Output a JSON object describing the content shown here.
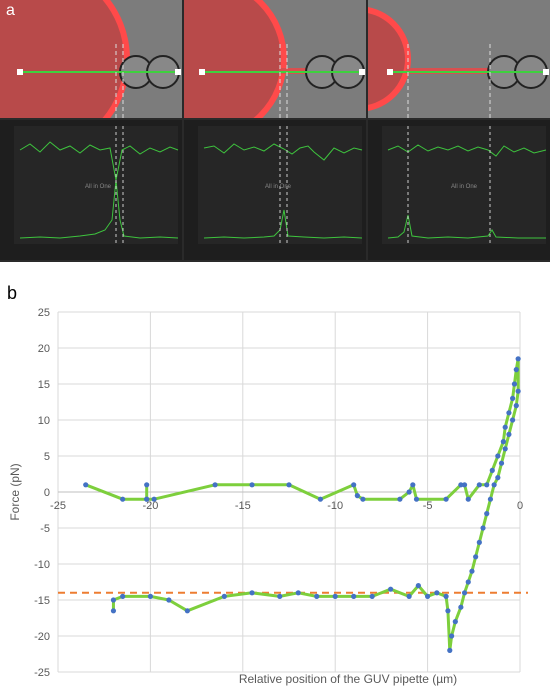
{
  "panel_labels": {
    "a": "a",
    "b": "b"
  },
  "micro_panels": [
    {
      "graph_label": "All in One"
    },
    {
      "graph_label": "All in One"
    },
    {
      "graph_label": "All in One"
    }
  ],
  "colors": {
    "series_line": "#7dcf3c",
    "series_marker": "#4472c4",
    "reference_line": "#ed7d31",
    "grid": "#d9d9d9",
    "axis_text": "#595959"
  },
  "chart_data": {
    "type": "scatter",
    "title": "",
    "xlabel": "Relative position of the GUV pipette (µm)",
    "ylabel": "Force (pN)",
    "xlim": [
      -25,
      0
    ],
    "ylim": [
      -25,
      25
    ],
    "x_ticks": [
      -25,
      -20,
      -15,
      -10,
      -5,
      0
    ],
    "y_ticks": [
      -25,
      -20,
      -15,
      -10,
      -5,
      0,
      5,
      10,
      15,
      20,
      25
    ],
    "grid": true,
    "legend": "none",
    "reference_line": {
      "y": -14,
      "style": "dashed"
    },
    "series": [
      {
        "points": [
          [
            -23.5,
            1.0
          ],
          [
            -21.5,
            -1.0
          ],
          [
            -20.2,
            -1.0
          ],
          [
            -20.2,
            1.0
          ],
          [
            -20.2,
            -1.0
          ],
          [
            -19.8,
            -1.0
          ],
          [
            -16.5,
            1.0
          ],
          [
            -14.5,
            1.0
          ],
          [
            -12.5,
            1.0
          ],
          [
            -10.8,
            -1.0
          ],
          [
            -9.0,
            1.0
          ],
          [
            -8.8,
            -0.5
          ],
          [
            -8.5,
            -1.0
          ],
          [
            -6.5,
            -1.0
          ],
          [
            -6.0,
            0.0
          ],
          [
            -5.8,
            1.0
          ],
          [
            -5.6,
            -1.0
          ],
          [
            -4.0,
            -1.0
          ],
          [
            -3.2,
            1.0
          ],
          [
            -3.0,
            1.0
          ],
          [
            -2.8,
            -1.0
          ],
          [
            -2.2,
            1.0
          ],
          [
            -1.8,
            1.0
          ],
          [
            -1.5,
            3.0
          ],
          [
            -1.2,
            5.0
          ],
          [
            -0.9,
            7.0
          ],
          [
            -0.8,
            9.0
          ],
          [
            -0.6,
            11.0
          ],
          [
            -0.4,
            13.0
          ],
          [
            -0.3,
            15.0
          ],
          [
            -0.2,
            17.0
          ],
          [
            -0.1,
            18.5
          ],
          [
            -0.1,
            14.0
          ],
          [
            -0.2,
            12.0
          ],
          [
            -0.4,
            10.0
          ],
          [
            -0.6,
            8.0
          ],
          [
            -0.8,
            6.0
          ],
          [
            -1.0,
            4.0
          ],
          [
            -1.2,
            2.0
          ],
          [
            -1.4,
            1.0
          ],
          [
            -1.6,
            -1.0
          ],
          [
            -1.8,
            -3.0
          ],
          [
            -2.0,
            -5.0
          ],
          [
            -2.2,
            -7.0
          ],
          [
            -2.4,
            -9.0
          ],
          [
            -2.6,
            -11.0
          ],
          [
            -2.8,
            -12.5
          ],
          [
            -3.0,
            -14.0
          ],
          [
            -3.2,
            -16.0
          ],
          [
            -3.5,
            -18.0
          ],
          [
            -3.7,
            -20.0
          ],
          [
            -3.8,
            -22.0
          ],
          [
            -3.9,
            -16.5
          ],
          [
            -4.0,
            -14.5
          ],
          [
            -4.5,
            -14.0
          ],
          [
            -5.0,
            -14.5
          ],
          [
            -5.5,
            -13.0
          ],
          [
            -6.0,
            -14.5
          ],
          [
            -7.0,
            -13.5
          ],
          [
            -8.0,
            -14.5
          ],
          [
            -9.0,
            -14.5
          ],
          [
            -10.0,
            -14.5
          ],
          [
            -11.0,
            -14.5
          ],
          [
            -12.0,
            -14.0
          ],
          [
            -13.0,
            -14.5
          ],
          [
            -14.5,
            -14.0
          ],
          [
            -16.0,
            -14.5
          ],
          [
            -18.0,
            -16.5
          ],
          [
            -19.0,
            -15.0
          ],
          [
            -20.0,
            -14.5
          ],
          [
            -21.5,
            -14.5
          ],
          [
            -22.0,
            -15.0
          ],
          [
            -22.0,
            -16.5
          ]
        ]
      }
    ]
  }
}
